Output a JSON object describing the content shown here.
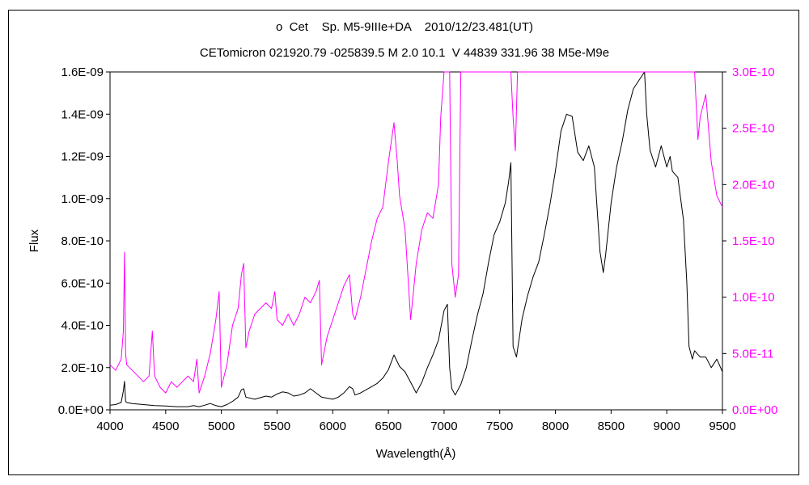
{
  "chart_data": {
    "type": "line",
    "title": "o  Cet    Sp. M5-9IIIe+DA    2010/12/23.481(UT)",
    "subtitle": "CETomicron 021920.79 -025839.5 M 2.0 10.1  V 44839 331.96 38 M5e-M9e",
    "xlabel": "Wavelength(Å)",
    "ylabel": "Flux",
    "xlim": [
      4000,
      9500
    ],
    "ylim": [
      0,
      1.6e-09
    ],
    "y2lim": [
      0,
      3e-10
    ],
    "grid": false,
    "x_ticks": [
      "4000",
      "4500",
      "5000",
      "5500",
      "6000",
      "6500",
      "7000",
      "7500",
      "8000",
      "8500",
      "9000",
      "9500"
    ],
    "y_ticks": [
      "0.0E+00",
      "2.0E-10",
      "4.0E-10",
      "6.0E-10",
      "8.0E-10",
      "1.0E-09",
      "1.2E-09",
      "1.4E-09",
      "1.6E-09"
    ],
    "y2_ticks": [
      "0.0E+00",
      "5.0E-11",
      "1.0E-10",
      "1.5E-10",
      "2.0E-10",
      "2.5E-10",
      "3.0E-10"
    ],
    "colors": {
      "primary": "#000000",
      "secondary": "#ff00ff"
    },
    "series": [
      {
        "axis": "left",
        "color": "#000000",
        "x": [
          4000,
          4050,
          4100,
          4120,
          4130,
          4140,
          4150,
          4200,
          4300,
          4400,
          4500,
          4600,
          4700,
          4750,
          4800,
          4850,
          4900,
          4950,
          5000,
          5050,
          5100,
          5150,
          5180,
          5200,
          5220,
          5300,
          5400,
          5450,
          5500,
          5550,
          5600,
          5650,
          5700,
          5750,
          5800,
          5850,
          5900,
          5950,
          6000,
          6050,
          6100,
          6150,
          6180,
          6200,
          6250,
          6300,
          6350,
          6400,
          6450,
          6500,
          6550,
          6600,
          6650,
          6700,
          6750,
          6800,
          6850,
          6900,
          6950,
          7000,
          7030,
          7050,
          7070,
          7100,
          7150,
          7200,
          7250,
          7300,
          7350,
          7400,
          7450,
          7500,
          7550,
          7580,
          7600,
          7620,
          7650,
          7700,
          7750,
          7800,
          7850,
          7900,
          7950,
          8000,
          8050,
          8100,
          8150,
          8200,
          8250,
          8300,
          8350,
          8400,
          8430,
          8450,
          8500,
          8550,
          8600,
          8650,
          8700,
          8750,
          8800,
          8820,
          8850,
          8900,
          8950,
          9000,
          9030,
          9050,
          9100,
          9150,
          9180,
          9200,
          9230,
          9250,
          9300,
          9350,
          9400,
          9450,
          9500
        ],
        "y": [
          2.2e-11,
          2.5e-11,
          3.5e-11,
          9e-11,
          1.35e-10,
          4e-11,
          3.5e-11,
          3e-11,
          2.5e-11,
          2e-11,
          1.8e-11,
          1.5e-11,
          1.5e-11,
          2e-11,
          1.5e-11,
          2.2e-11,
          3e-11,
          2e-11,
          1.5e-11,
          2.5e-11,
          4e-11,
          6e-11,
          9.5e-11,
          1e-10,
          6e-11,
          5e-11,
          6.5e-11,
          6e-11,
          7.5e-11,
          8.5e-11,
          8e-11,
          6.5e-11,
          7e-11,
          8e-11,
          1e-10,
          8e-11,
          6e-11,
          5.5e-11,
          5e-11,
          6e-11,
          8e-11,
          1.1e-10,
          1e-10,
          7e-11,
          8e-11,
          9.5e-11,
          1.1e-10,
          1.25e-10,
          1.5e-10,
          1.9e-10,
          2.6e-10,
          2.05e-10,
          1.8e-10,
          1.3e-10,
          8e-11,
          1.3e-10,
          2e-10,
          2.6e-10,
          3.3e-10,
          4.7e-10,
          5e-10,
          2e-10,
          1e-10,
          7e-11,
          1.2e-10,
          2e-10,
          3.3e-10,
          4.5e-10,
          5.5e-10,
          7e-10,
          8.3e-10,
          8.9e-10,
          9.8e-10,
          1.08e-09,
          1.17e-09,
          3e-10,
          2.5e-10,
          4.3e-10,
          5.4e-10,
          6.3e-10,
          7e-10,
          8.3e-10,
          9.7e-10,
          1.13e-09,
          1.32e-09,
          1.4e-09,
          1.39e-09,
          1.22e-09,
          1.18e-09,
          1.25e-09,
          1.15e-09,
          7.5e-10,
          6.5e-10,
          7.3e-10,
          9.8e-10,
          1.15e-09,
          1.27e-09,
          1.42e-09,
          1.52e-09,
          1.56e-09,
          1.6e-09,
          1.4e-09,
          1.23e-09,
          1.15e-09,
          1.25e-09,
          1.15e-09,
          1.2e-09,
          1.13e-09,
          1.1e-09,
          9e-10,
          6e-10,
          3e-10,
          2.4e-10,
          2.8e-10,
          2.5e-10,
          2.5e-10,
          2e-10,
          2.4e-10,
          1.8e-10
        ]
      },
      {
        "axis": "right",
        "color": "#ff00ff",
        "x": [
          4000,
          4050,
          4100,
          4120,
          4130,
          4140,
          4150,
          4200,
          4250,
          4300,
          4350,
          4380,
          4400,
          4450,
          4500,
          4550,
          4600,
          4650,
          4700,
          4750,
          4780,
          4800,
          4850,
          4900,
          4950,
          4980,
          5000,
          5050,
          5100,
          5150,
          5180,
          5200,
          5220,
          5250,
          5300,
          5350,
          5400,
          5450,
          5480,
          5500,
          5550,
          5600,
          5650,
          5700,
          5750,
          5800,
          5850,
          5880,
          5900,
          5950,
          6000,
          6050,
          6100,
          6150,
          6180,
          6200,
          6250,
          6300,
          6350,
          6400,
          6450,
          6500,
          6550,
          6580,
          6600,
          6650,
          6700,
          6750,
          6800,
          6850,
          6900,
          6950,
          6970,
          7000,
          7050,
          7070,
          7100,
          7130,
          7150,
          7200,
          7250,
          7300,
          7350,
          7400,
          7450,
          7600,
          7620,
          7640,
          7660,
          7680,
          9250,
          9280,
          9300,
          9350,
          9400,
          9450,
          9500
        ],
        "y": [
          4e-11,
          3.5e-11,
          4.5e-11,
          7e-11,
          1.4e-10,
          5e-11,
          4e-11,
          3.5e-11,
          3e-11,
          2.5e-11,
          3e-11,
          7e-11,
          3e-11,
          2e-11,
          1.5e-11,
          2.5e-11,
          2e-11,
          2.5e-11,
          3e-11,
          2.5e-11,
          4.5e-11,
          1.5e-11,
          3e-11,
          5e-11,
          8e-11,
          1.05e-10,
          2e-11,
          4e-11,
          7.5e-11,
          9e-11,
          1.2e-10,
          1.3e-10,
          5.5e-11,
          7e-11,
          8.5e-11,
          9e-11,
          9.5e-11,
          9e-11,
          1.05e-10,
          8e-11,
          7.5e-11,
          8.5e-11,
          7.5e-11,
          8.5e-11,
          1e-10,
          9.5e-11,
          1.05e-10,
          1.15e-10,
          4e-11,
          6.5e-11,
          8e-11,
          9.5e-11,
          1.1e-10,
          1.2e-10,
          8.5e-11,
          8e-11,
          1e-10,
          1.25e-10,
          1.5e-10,
          1.7e-10,
          1.8e-10,
          2.2e-10,
          2.55e-10,
          2.2e-10,
          1.9e-10,
          1.6e-10,
          8e-11,
          1.3e-10,
          1.6e-10,
          1.75e-10,
          1.7e-10,
          2e-10,
          2.6e-10,
          3e-10,
          3e-10,
          1.3e-10,
          1e-10,
          1.2e-10,
          3e-10,
          3e-10,
          3e-10,
          3e-10,
          3e-10,
          3e-10,
          3e-10,
          3e-10,
          2.6e-10,
          2.3e-10,
          3e-10,
          3e-10,
          3e-10,
          2.4e-10,
          2.6e-10,
          2.8e-10,
          2.2e-10,
          1.9e-10,
          1.8e-10
        ]
      }
    ]
  }
}
